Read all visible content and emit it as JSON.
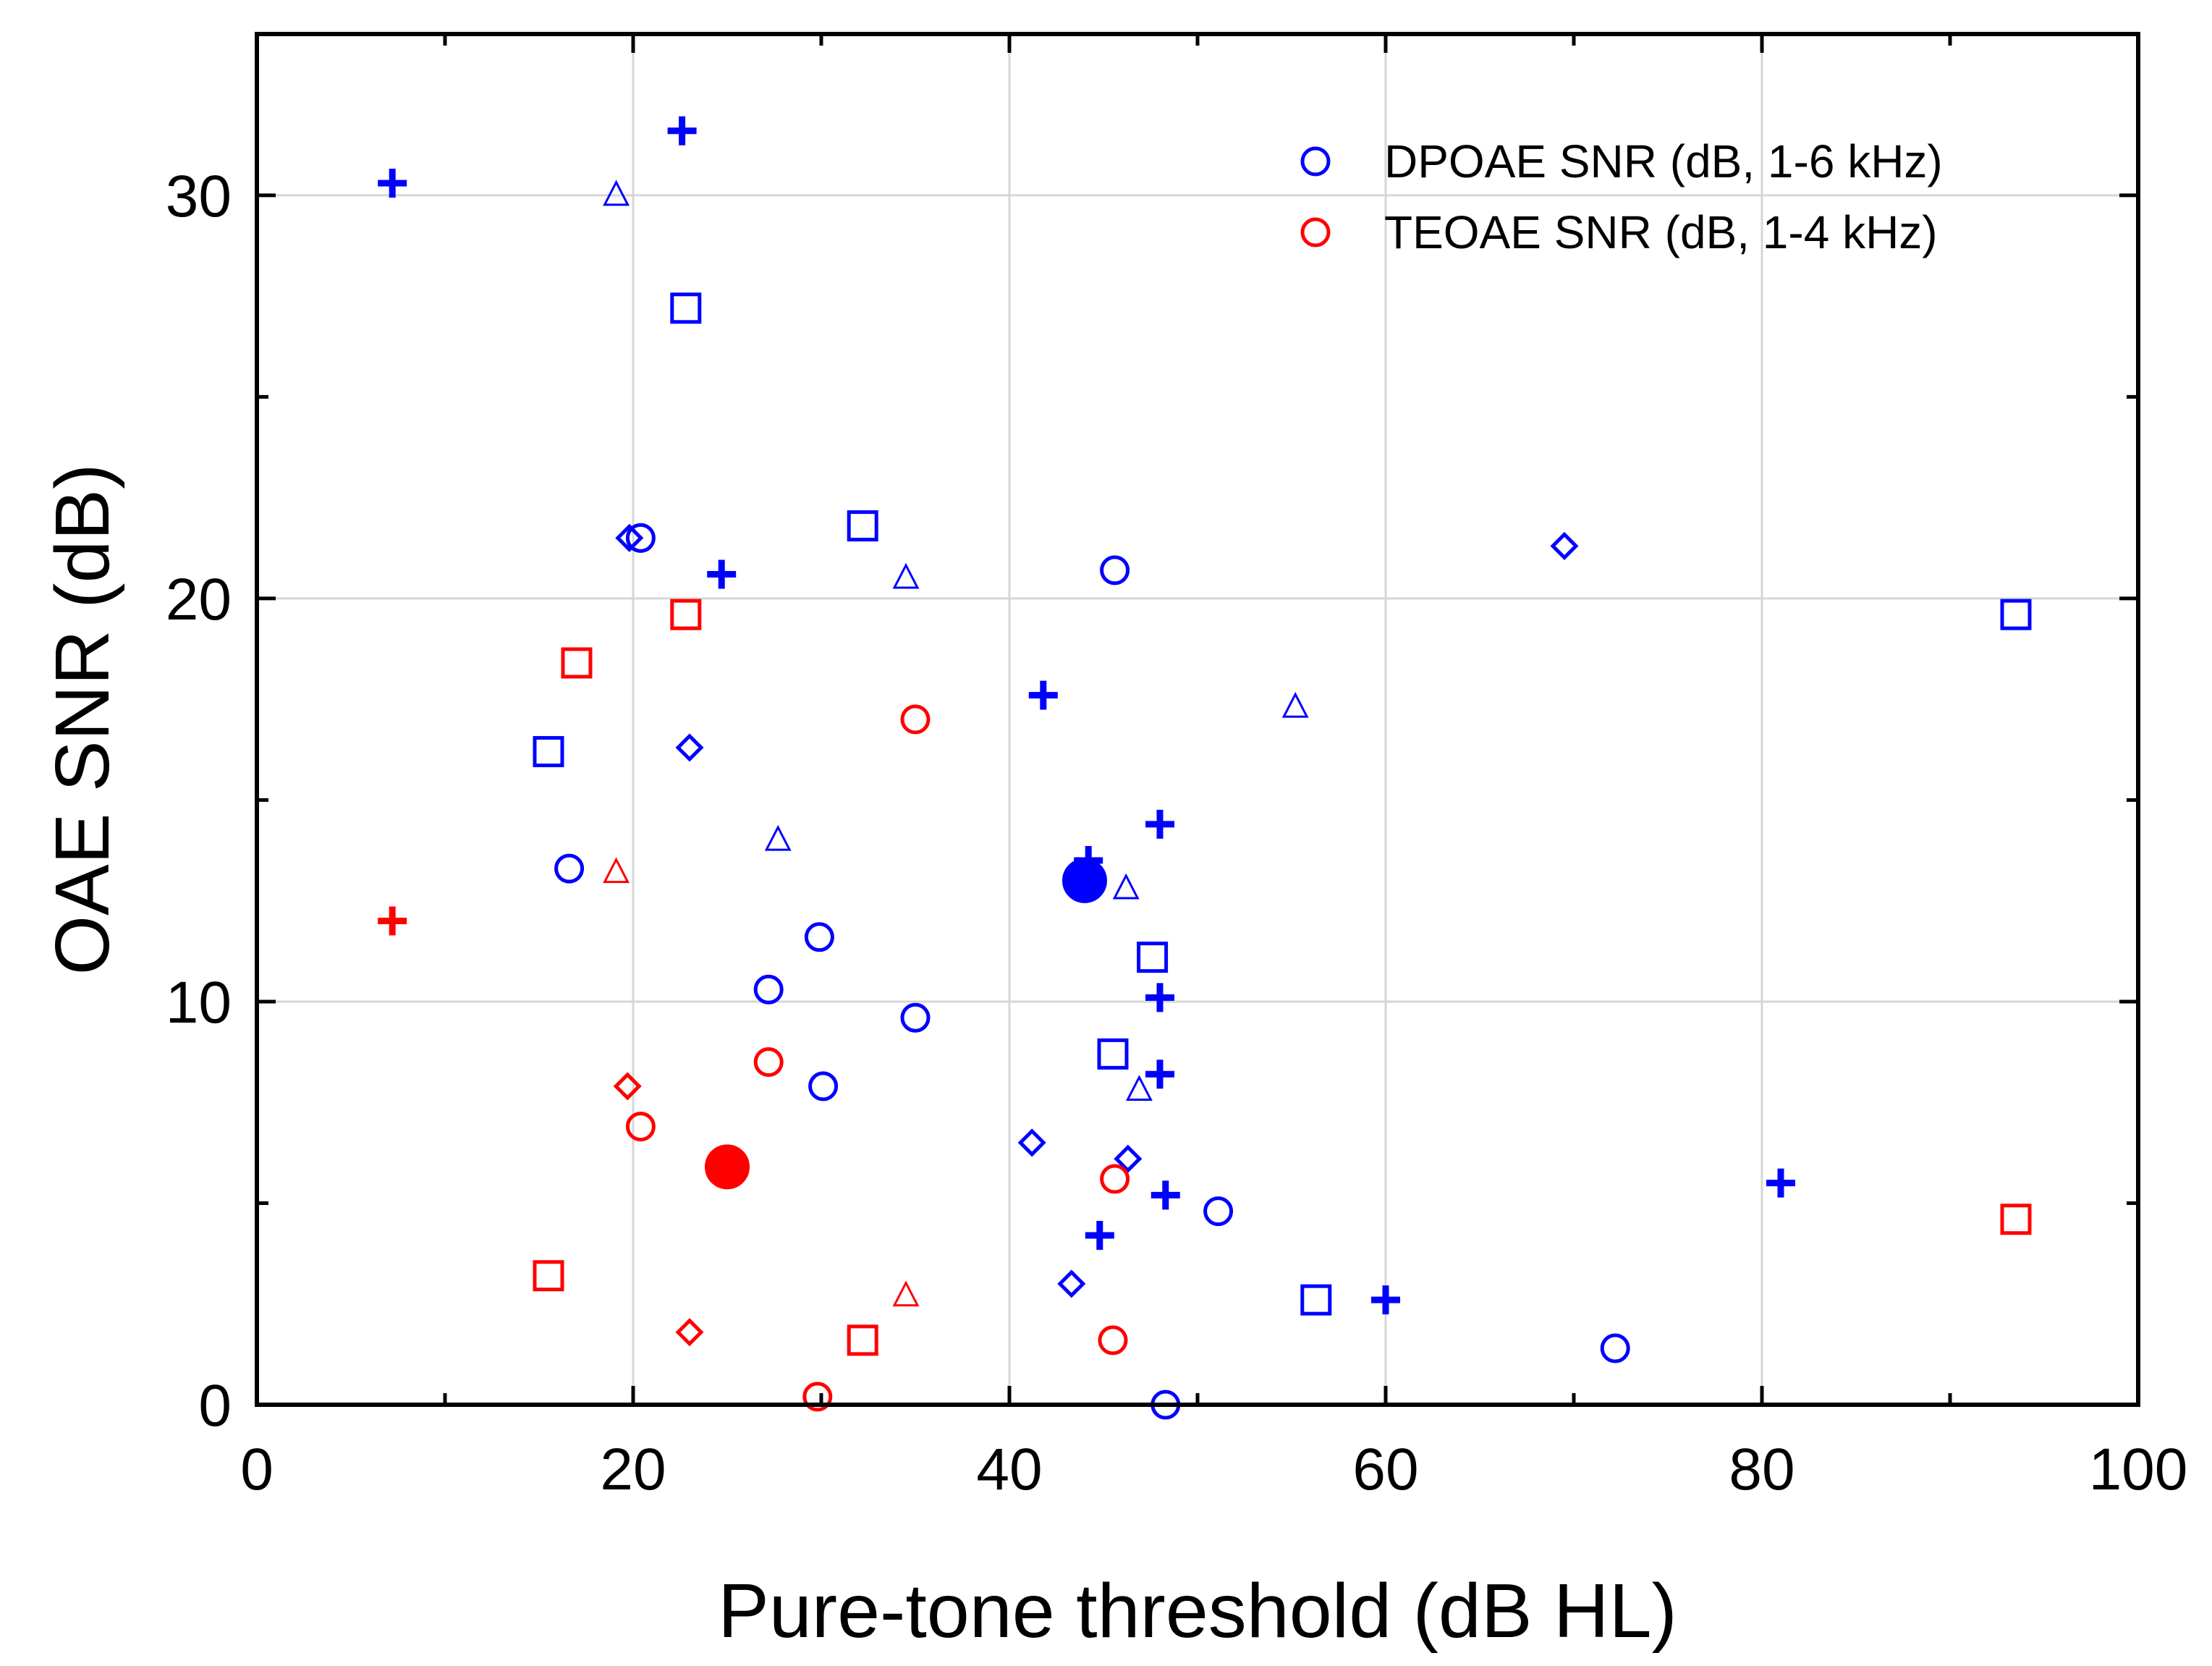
{
  "chart_data": {
    "type": "scatter",
    "title": "",
    "xlabel": "Pure-tone threshold (dB HL)",
    "ylabel": "OAE SNR (dB)",
    "xlim": [
      0,
      100
    ],
    "ylim": [
      0,
      34
    ],
    "xticks": [
      0,
      20,
      40,
      60,
      80,
      100
    ],
    "yticks": [
      0,
      10,
      20,
      30
    ],
    "grid": true,
    "legend_position": "top-right",
    "legend": [
      {
        "label": "DPOAE SNR (dB, 1-6 kHz)",
        "color": "#0000ff",
        "marker": "circle"
      },
      {
        "label": "TEOAE SNR (dB, 1-4 kHz)",
        "color": "#ff0000",
        "marker": "circle"
      }
    ],
    "series": [
      {
        "name": "DPOAE SNR (dB, 1-6 kHz)",
        "color": "#0000ff",
        "points": [
          {
            "x": 7.2,
            "y": 30.3,
            "m": "plus"
          },
          {
            "x": 22.6,
            "y": 31.6,
            "m": "plus"
          },
          {
            "x": 24.7,
            "y": 20.6,
            "m": "plus"
          },
          {
            "x": 41.8,
            "y": 17.6,
            "m": "plus"
          },
          {
            "x": 44.2,
            "y": 13.5,
            "m": "plus"
          },
          {
            "x": 48.0,
            "y": 14.4,
            "m": "plus"
          },
          {
            "x": 48.0,
            "y": 10.1,
            "m": "plus"
          },
          {
            "x": 48.0,
            "y": 8.2,
            "m": "plus"
          },
          {
            "x": 48.3,
            "y": 5.2,
            "m": "plus"
          },
          {
            "x": 44.8,
            "y": 4.2,
            "m": "plus"
          },
          {
            "x": 60.0,
            "y": 2.6,
            "m": "plus"
          },
          {
            "x": 81.0,
            "y": 5.5,
            "m": "plus"
          },
          {
            "x": 19.1,
            "y": 30.0,
            "m": "triangle"
          },
          {
            "x": 34.5,
            "y": 20.5,
            "m": "triangle"
          },
          {
            "x": 27.7,
            "y": 14.0,
            "m": "triangle"
          },
          {
            "x": 46.2,
            "y": 12.8,
            "m": "triangle"
          },
          {
            "x": 55.2,
            "y": 17.3,
            "m": "triangle"
          },
          {
            "x": 46.9,
            "y": 7.8,
            "m": "triangle"
          },
          {
            "x": 22.8,
            "y": 27.2,
            "m": "square"
          },
          {
            "x": 32.2,
            "y": 21.8,
            "m": "square"
          },
          {
            "x": 15.5,
            "y": 16.2,
            "m": "square"
          },
          {
            "x": 47.6,
            "y": 11.1,
            "m": "square"
          },
          {
            "x": 45.5,
            "y": 8.7,
            "m": "square"
          },
          {
            "x": 56.3,
            "y": 2.6,
            "m": "square"
          },
          {
            "x": 93.5,
            "y": 19.6,
            "m": "square"
          },
          {
            "x": 19.8,
            "y": 21.5,
            "m": "diamond"
          },
          {
            "x": 23.0,
            "y": 16.3,
            "m": "diamond"
          },
          {
            "x": 69.5,
            "y": 21.3,
            "m": "diamond"
          },
          {
            "x": 41.2,
            "y": 6.5,
            "m": "diamond"
          },
          {
            "x": 46.3,
            "y": 6.1,
            "m": "diamond"
          },
          {
            "x": 43.3,
            "y": 3.0,
            "m": "diamond"
          },
          {
            "x": 20.4,
            "y": 21.5,
            "m": "circle"
          },
          {
            "x": 45.6,
            "y": 20.7,
            "m": "circle"
          },
          {
            "x": 16.6,
            "y": 13.3,
            "m": "circle"
          },
          {
            "x": 29.9,
            "y": 11.6,
            "m": "circle"
          },
          {
            "x": 27.2,
            "y": 10.3,
            "m": "circle"
          },
          {
            "x": 35.0,
            "y": 9.6,
            "m": "circle"
          },
          {
            "x": 30.1,
            "y": 7.9,
            "m": "circle"
          },
          {
            "x": 51.1,
            "y": 4.8,
            "m": "circle"
          },
          {
            "x": 72.2,
            "y": 1.4,
            "m": "circle"
          },
          {
            "x": 48.3,
            "y": 0.0,
            "m": "circle"
          },
          {
            "x": 44.0,
            "y": 13.0,
            "m": "filled-circle"
          }
        ]
      },
      {
        "name": "TEOAE SNR (dB, 1-4 kHz)",
        "color": "#ff0000",
        "points": [
          {
            "x": 7.2,
            "y": 12.0,
            "m": "plus"
          },
          {
            "x": 19.1,
            "y": 13.2,
            "m": "triangle"
          },
          {
            "x": 34.5,
            "y": 2.7,
            "m": "triangle"
          },
          {
            "x": 22.8,
            "y": 19.6,
            "m": "square"
          },
          {
            "x": 17.0,
            "y": 18.4,
            "m": "square"
          },
          {
            "x": 15.5,
            "y": 3.2,
            "m": "square"
          },
          {
            "x": 32.2,
            "y": 1.6,
            "m": "square"
          },
          {
            "x": 93.5,
            "y": 4.6,
            "m": "square"
          },
          {
            "x": 19.7,
            "y": 7.9,
            "m": "diamond"
          },
          {
            "x": 23.0,
            "y": 1.8,
            "m": "diamond"
          },
          {
            "x": 35.0,
            "y": 17.0,
            "m": "circle"
          },
          {
            "x": 27.2,
            "y": 8.5,
            "m": "circle"
          },
          {
            "x": 20.4,
            "y": 6.9,
            "m": "circle"
          },
          {
            "x": 45.6,
            "y": 5.6,
            "m": "circle"
          },
          {
            "x": 45.5,
            "y": 1.6,
            "m": "circle"
          },
          {
            "x": 29.8,
            "y": 0.2,
            "m": "circle"
          },
          {
            "x": 25.0,
            "y": 5.9,
            "m": "filled-circle"
          }
        ]
      }
    ]
  }
}
